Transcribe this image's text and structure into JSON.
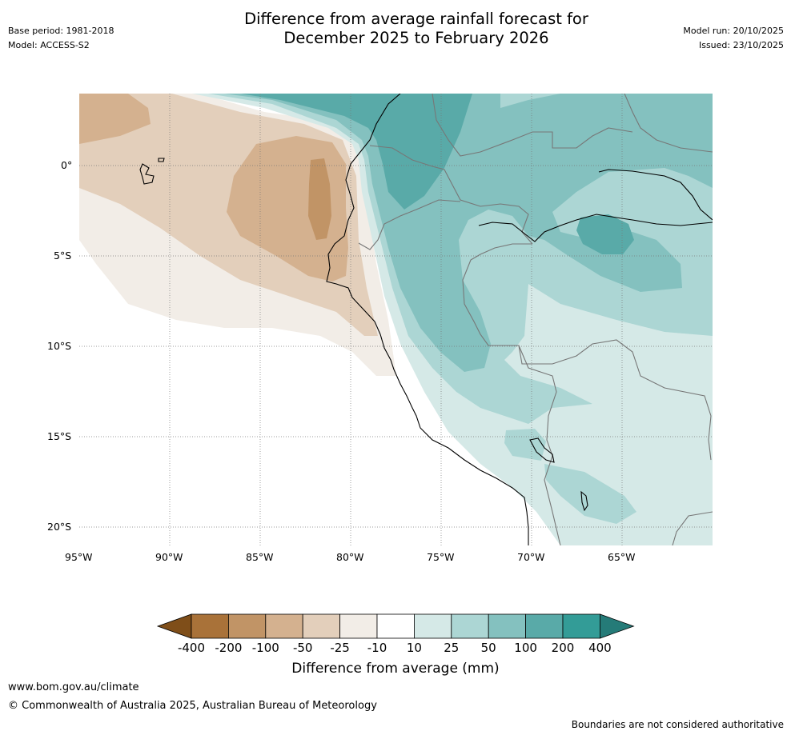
{
  "header": {
    "base_period": "Base period: 1981-2018",
    "model": "Model: ACCESS-S2",
    "title_line1": "Difference from average rainfall forecast for",
    "title_line2": "December 2025 to February 2026",
    "model_run": "Model run: 20/10/2025",
    "issued": "Issued: 23/10/2025"
  },
  "map": {
    "lat_labels": [
      "0°",
      "5°S",
      "10°S",
      "15°S",
      "20°S"
    ],
    "lon_labels": [
      "95°W",
      "90°W",
      "85°W",
      "80°W",
      "75°W",
      "70°W",
      "65°W"
    ]
  },
  "legend": {
    "ticks": [
      "-400",
      "-200",
      "-100",
      "-50",
      "-25",
      "-10",
      "10",
      "25",
      "50",
      "100",
      "200",
      "400"
    ],
    "colors": [
      "#7f4e19",
      "#a97239",
      "#c19466",
      "#d4b18f",
      "#e3cfbb",
      "#f2ede7",
      "#ffffff",
      "#d5e9e7",
      "#acd6d4",
      "#84c1bf",
      "#59aaa8",
      "#339c97",
      "#257b78"
    ],
    "label": "Difference from average (mm)"
  },
  "footer": {
    "url": "www.bom.gov.au/climate",
    "copyright": "© Commonwealth of Australia 2025, Australian Bureau of Meteorology",
    "disclaimer": "Boundaries are not considered authoritative"
  }
}
